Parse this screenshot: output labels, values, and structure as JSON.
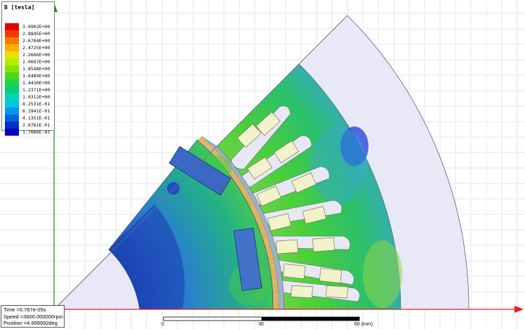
{
  "legend": {
    "title": "B [tesla]",
    "entries": [
      {
        "label": "3.0902E+00",
        "color": "#e80000"
      },
      {
        "label": "2.8845E+00",
        "color": "#f23a00"
      },
      {
        "label": "2.6784E+00",
        "color": "#f87a00"
      },
      {
        "label": "2.4725E+00",
        "color": "#f8b000"
      },
      {
        "label": "2.2666E+00",
        "color": "#e8e000"
      },
      {
        "label": "2.0607E+00",
        "color": "#b6ec00"
      },
      {
        "label": "1.8548E+00",
        "color": "#84e400"
      },
      {
        "label": "1.6489E+00",
        "color": "#4ad81a"
      },
      {
        "label": "1.4430E+00",
        "color": "#1fd24a"
      },
      {
        "label": "1.2371E+00",
        "color": "#00d07a"
      },
      {
        "label": "1.0312E+00",
        "color": "#00d6b2"
      },
      {
        "label": "8.2531E-01",
        "color": "#00c6e2"
      },
      {
        "label": "6.1941E-01",
        "color": "#0098e8"
      },
      {
        "label": "4.1351E-01",
        "color": "#0064de"
      },
      {
        "label": "2.0761E-01",
        "color": "#0030cc"
      },
      {
        "label": "1.7080E-03",
        "color": "#0000c0"
      }
    ]
  },
  "info": {
    "time": "Time    =5.787e-05s",
    "speed": "Speed   =3600.000000rpm",
    "position": "Position =4.999992deg"
  },
  "scale": {
    "t0": "0",
    "t1": "30",
    "t2": "60 (mm)"
  },
  "colors": {
    "x_axis": "#e02020",
    "y_axis": "#109010",
    "grid": "#e4e4ee",
    "airbox": "#e8e8f6"
  }
}
